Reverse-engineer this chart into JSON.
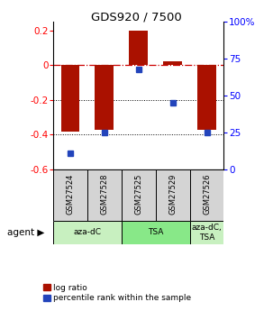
{
  "title": "GDS920 / 7500",
  "samples": [
    "GSM27524",
    "GSM27528",
    "GSM27525",
    "GSM27529",
    "GSM27526"
  ],
  "log_ratios": [
    -0.38,
    -0.37,
    0.2,
    0.02,
    -0.37
  ],
  "percentile_ranks": [
    11,
    25,
    68,
    45,
    25
  ],
  "ylim_left": [
    -0.6,
    0.25
  ],
  "ylim_right": [
    0,
    100
  ],
  "yticks_left": [
    -0.6,
    -0.4,
    -0.2,
    0.0,
    0.2
  ],
  "yticks_right": [
    0,
    25,
    50,
    75,
    100
  ],
  "bar_color": "#aa1100",
  "dot_color": "#2244bb",
  "zero_line_color": "#cc0000",
  "background_color": "#ffffff",
  "groups": [
    {
      "label": "aza-dC",
      "start": 0,
      "end": 1,
      "color": "#c8f0c0"
    },
    {
      "label": "TSA",
      "start": 2,
      "end": 3,
      "color": "#88e888"
    },
    {
      "label": "aza-dC,\nTSA",
      "start": 4,
      "end": 4,
      "color": "#c8f0c0"
    }
  ],
  "legend_labels": [
    "log ratio",
    "percentile rank within the sample"
  ]
}
